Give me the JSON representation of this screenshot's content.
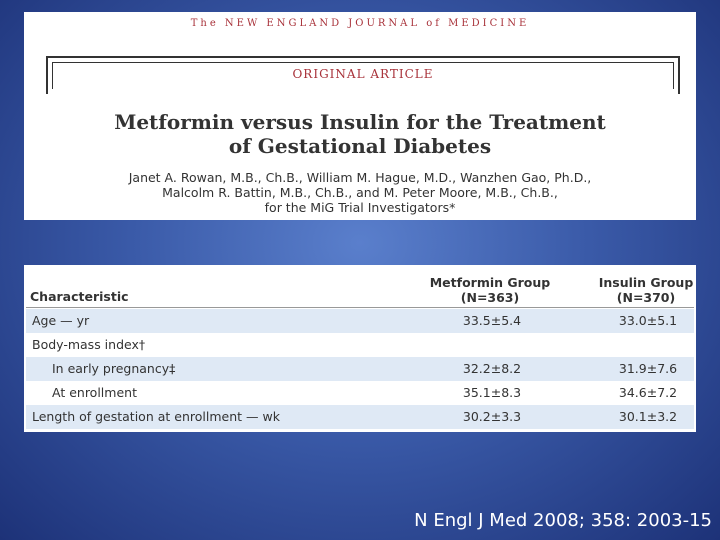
{
  "article": {
    "journal": "The NEW ENGLAND JOURNAL of MEDICINE",
    "label": "ORIGINAL ARTICLE",
    "title": [
      "Metformin versus Insulin for the Treatment",
      "of Gestational Diabetes"
    ],
    "authors": [
      "Janet A. Rowan, M.B., Ch.B., William M. Hague, M.D., Wanzhen Gao, Ph.D.,",
      "Malcolm R. Battin, M.B., Ch.B., and M. Peter Moore, M.B., Ch.B.,",
      "for the MiG Trial Investigators*"
    ]
  },
  "table": {
    "header": [
      [
        "Characteristic"
      ],
      [
        "Metformin Group",
        "(N=363)"
      ],
      [
        "Insulin Group",
        "(N=370)"
      ]
    ],
    "rows": [
      [
        "Age — yr",
        "33.5±5.4",
        "33.0±5.1"
      ],
      [
        "Body-mass index†",
        "",
        ""
      ],
      [
        "In early pregnancy‡",
        "32.2±8.2",
        "31.9±7.6"
      ],
      [
        "At enrollment",
        "35.1±8.3",
        "34.6±7.2"
      ],
      [
        "Length of gestation at enrollment — wk",
        "30.2±3.3",
        "30.1±3.2"
      ]
    ]
  },
  "citation": "N Engl J Med 2008; 358: 2003-15"
}
